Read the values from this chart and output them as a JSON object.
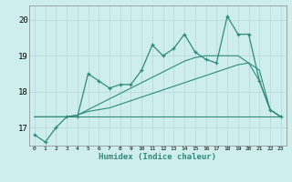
{
  "xlabel": "Humidex (Indice chaleur)",
  "x": [
    0,
    1,
    2,
    3,
    4,
    5,
    6,
    7,
    8,
    9,
    10,
    11,
    12,
    13,
    14,
    15,
    16,
    17,
    18,
    19,
    20,
    21,
    22,
    23
  ],
  "line1": [
    16.8,
    16.6,
    17.0,
    17.3,
    17.3,
    18.5,
    18.3,
    18.1,
    18.2,
    18.2,
    18.6,
    19.3,
    19.0,
    19.2,
    19.6,
    19.1,
    18.9,
    18.8,
    20.1,
    19.6,
    19.6,
    18.3,
    17.5,
    17.3
  ],
  "line_flat": [
    17.3,
    17.3,
    17.3,
    17.3,
    17.3,
    17.3,
    17.3,
    17.3,
    17.3,
    17.3,
    17.3,
    17.3,
    17.3,
    17.3,
    17.3,
    17.3,
    17.3,
    17.3,
    17.3,
    17.3,
    17.3,
    17.3,
    17.3,
    17.3
  ],
  "line_ramp1": [
    17.3,
    17.3,
    17.3,
    17.3,
    17.35,
    17.45,
    17.5,
    17.55,
    17.65,
    17.75,
    17.85,
    17.95,
    18.05,
    18.15,
    18.25,
    18.35,
    18.45,
    18.55,
    18.65,
    18.75,
    18.8,
    18.6,
    17.5,
    17.3
  ],
  "line_ramp2": [
    17.3,
    17.3,
    17.3,
    17.3,
    17.35,
    17.5,
    17.65,
    17.8,
    17.95,
    18.1,
    18.25,
    18.4,
    18.55,
    18.7,
    18.85,
    18.95,
    19.0,
    19.0,
    19.0,
    19.0,
    18.8,
    18.3,
    17.5,
    17.3
  ],
  "line_color": "#2e8b7a",
  "background_color": "#ceeeed",
  "grid_color": "#b8dada",
  "ylim": [
    16.5,
    20.4
  ],
  "yticks": [
    17,
    18,
    19,
    20
  ],
  "xticks": [
    0,
    1,
    2,
    3,
    4,
    5,
    6,
    7,
    8,
    9,
    10,
    11,
    12,
    13,
    14,
    15,
    16,
    17,
    18,
    19,
    20,
    21,
    22,
    23
  ]
}
